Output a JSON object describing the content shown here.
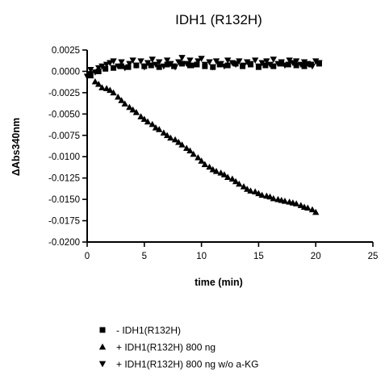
{
  "chart_data": {
    "type": "scatter",
    "title": "IDH1 (R132H)",
    "xlabel": "time (min)",
    "ylabel": "ΔAbs340nm",
    "xlim": [
      0,
      25
    ],
    "ylim": [
      -0.02,
      0.0025
    ],
    "x_ticks": [
      0,
      5,
      10,
      15,
      20,
      25
    ],
    "x_tick_labels": [
      "0",
      "5",
      "10",
      "15",
      "20",
      "25"
    ],
    "y_ticks": [
      0.0025,
      0.0,
      -0.0025,
      -0.005,
      -0.0075,
      -0.01,
      -0.0125,
      -0.015,
      -0.0175,
      -0.02
    ],
    "y_tick_labels": [
      "0.0025",
      "0.0000",
      "-0.0025",
      "-0.0050",
      "-0.0075",
      "-0.0100",
      "-0.0125",
      "-0.0150",
      "-0.0175",
      "-0.0200"
    ],
    "legend_position": "bottom",
    "series": [
      {
        "name": "- IDH1(R132H)",
        "marker": "square",
        "color": "#000000",
        "x": [
          0.3,
          1.0,
          1.6,
          2.3,
          3.0,
          3.6,
          4.3,
          5.0,
          5.6,
          6.3,
          7.0,
          7.6,
          8.3,
          9.0,
          9.6,
          10.3,
          11.0,
          11.6,
          12.3,
          13.0,
          13.6,
          14.3,
          15.0,
          15.6,
          16.3,
          17.0,
          17.6,
          18.3,
          19.0,
          19.6,
          20.3
        ],
        "y": [
          -0.0003,
          0.0,
          0.0003,
          0.0004,
          0.0006,
          0.0005,
          0.0007,
          0.0006,
          0.0007,
          0.0005,
          0.0008,
          0.0006,
          0.0009,
          0.0007,
          0.0008,
          0.0006,
          0.0005,
          0.0008,
          0.0007,
          0.0009,
          0.0006,
          0.0008,
          0.0005,
          0.0007,
          0.0006,
          0.0009,
          0.0008,
          0.0007,
          0.0006,
          0.0008,
          0.0009
        ]
      },
      {
        "name": "+ IDH1(R132H) 800 ng",
        "marker": "triangle-up",
        "color": "#000000",
        "x": [
          0.3,
          0.7,
          1.0,
          1.3,
          1.7,
          2.0,
          2.3,
          2.7,
          3.0,
          3.3,
          3.7,
          4.0,
          4.3,
          4.7,
          5.0,
          5.3,
          5.7,
          6.0,
          6.3,
          6.7,
          7.0,
          7.3,
          7.7,
          8.0,
          8.3,
          8.7,
          9.0,
          9.3,
          9.7,
          10.0,
          10.3,
          10.7,
          11.0,
          11.3,
          11.7,
          12.0,
          12.3,
          12.7,
          13.0,
          13.3,
          13.7,
          14.0,
          14.3,
          14.7,
          15.0,
          15.3,
          15.7,
          16.0,
          16.3,
          16.7,
          17.0,
          17.3,
          17.7,
          18.0,
          18.3,
          18.7,
          19.0,
          19.3,
          19.7,
          20.0
        ],
        "y": [
          -0.0005,
          -0.0012,
          -0.0015,
          -0.0019,
          -0.002,
          -0.0022,
          -0.0025,
          -0.003,
          -0.0034,
          -0.0038,
          -0.0042,
          -0.0045,
          -0.0048,
          -0.0053,
          -0.0056,
          -0.0059,
          -0.0062,
          -0.0066,
          -0.0068,
          -0.0072,
          -0.0075,
          -0.0078,
          -0.008,
          -0.0083,
          -0.0086,
          -0.009,
          -0.0093,
          -0.0097,
          -0.0101,
          -0.0105,
          -0.0109,
          -0.0112,
          -0.0115,
          -0.0117,
          -0.0119,
          -0.0121,
          -0.0124,
          -0.0126,
          -0.0129,
          -0.0132,
          -0.0135,
          -0.0138,
          -0.014,
          -0.0141,
          -0.0143,
          -0.0145,
          -0.0146,
          -0.0147,
          -0.0149,
          -0.015,
          -0.0151,
          -0.0152,
          -0.0153,
          -0.0154,
          -0.0155,
          -0.0157,
          -0.0159,
          -0.016,
          -0.0162,
          -0.0165
        ]
      },
      {
        "name": "+ IDH1(R132H) 800 ng w/o a-KG",
        "marker": "triangle-down",
        "color": "#000000",
        "x": [
          0.0,
          0.3,
          0.7,
          1.0,
          1.3,
          1.7,
          2.0,
          2.3,
          2.7,
          3.0,
          3.3,
          3.7,
          4.0,
          4.3,
          4.7,
          5.0,
          5.3,
          5.7,
          6.0,
          6.3,
          6.7,
          7.0,
          7.3,
          7.7,
          8.0,
          8.3,
          8.7,
          9.0,
          9.3,
          9.7,
          10.0,
          10.3,
          10.7,
          11.0,
          11.3,
          11.7,
          12.0,
          12.3,
          12.7,
          13.0,
          13.3,
          13.7,
          14.0,
          14.3,
          14.7,
          15.0,
          15.3,
          15.7,
          16.0,
          16.3,
          16.7,
          17.0,
          17.3,
          17.7,
          18.0,
          18.3,
          18.7,
          19.0,
          19.3,
          19.7,
          20.0,
          20.3
        ],
        "y": [
          -0.0006,
          0.0002,
          -0.0001,
          0.0004,
          0.0006,
          0.0008,
          0.001,
          0.0012,
          0.0006,
          0.0011,
          0.0004,
          0.0009,
          0.0013,
          0.0007,
          0.0012,
          0.0005,
          0.001,
          0.0014,
          0.0008,
          0.0011,
          0.0006,
          0.0013,
          0.0009,
          0.0005,
          0.0011,
          0.0016,
          0.0009,
          0.0013,
          0.0007,
          0.0012,
          0.0015,
          0.0008,
          0.0011,
          0.0005,
          0.0012,
          0.0009,
          0.0006,
          0.0013,
          0.001,
          0.0008,
          0.0012,
          0.0007,
          0.0011,
          0.0009,
          0.0013,
          0.0006,
          0.001,
          0.0012,
          0.0008,
          0.0014,
          0.0009,
          0.0011,
          0.0007,
          0.0013,
          0.001,
          0.0012,
          0.0008,
          0.0011,
          0.0009,
          0.0006,
          0.0012,
          0.001
        ]
      }
    ]
  }
}
